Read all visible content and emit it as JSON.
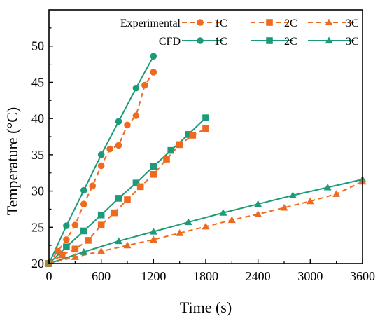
{
  "chart_data": {
    "type": "line",
    "xlabel": "Time (s)",
    "ylabel": "Temperature (°C)",
    "xlim": [
      0,
      3600
    ],
    "ylim": [
      20,
      55
    ],
    "xticks": [
      0,
      600,
      1200,
      1800,
      2400,
      3000,
      3600
    ],
    "yticks": [
      20,
      25,
      30,
      35,
      40,
      45,
      50
    ],
    "grid": false,
    "legend_position": "top",
    "legend": {
      "group_labels": [
        "Experimental",
        "CFD"
      ],
      "rate_labels": [
        "1C",
        "2C",
        "3C"
      ]
    },
    "colors": {
      "experimental": "#ee6a1f",
      "cfd": "#1b9b7a",
      "overlap": "#9a8a3a"
    },
    "series": [
      {
        "name": "1C",
        "group": "Experimental",
        "marker": "circle",
        "linestyle": "dashed",
        "color": "#ee6a1f",
        "x": [
          0,
          100,
          200,
          300,
          400,
          500,
          600,
          700,
          800,
          900,
          1000,
          1100,
          1200
        ],
        "y": [
          20.0,
          21.7,
          23.3,
          25.3,
          28.2,
          30.7,
          33.5,
          35.8,
          36.3,
          39.1,
          40.4,
          44.6,
          46.4
        ]
      },
      {
        "name": "2C",
        "group": "Experimental",
        "marker": "square",
        "linestyle": "dashed",
        "color": "#ee6a1f",
        "x": [
          0,
          150,
          300,
          450,
          600,
          750,
          900,
          1050,
          1200,
          1350,
          1500,
          1650,
          1800
        ],
        "y": [
          20.0,
          21.2,
          22.0,
          23.2,
          25.3,
          27.0,
          28.8,
          30.6,
          32.3,
          34.4,
          36.4,
          37.7,
          38.6
        ]
      },
      {
        "name": "3C",
        "group": "Experimental",
        "marker": "triangle",
        "linestyle": "dashed",
        "color": "#ee6a1f",
        "x": [
          0,
          300,
          600,
          900,
          1200,
          1500,
          1800,
          2100,
          2400,
          2700,
          3000,
          3300,
          3600
        ],
        "y": [
          20.0,
          20.9,
          21.7,
          22.5,
          23.3,
          24.2,
          25.1,
          26.0,
          26.8,
          27.7,
          28.6,
          29.6,
          31.3
        ]
      },
      {
        "name": "1C",
        "group": "CFD",
        "marker": "circle",
        "linestyle": "solid",
        "color": "#1b9b7a",
        "x": [
          0,
          200,
          400,
          600,
          800,
          1000,
          1200
        ],
        "y": [
          20.0,
          25.2,
          30.1,
          35.0,
          39.6,
          44.2,
          48.6
        ]
      },
      {
        "name": "2C",
        "group": "CFD",
        "marker": "square",
        "linestyle": "solid",
        "color": "#1b9b7a",
        "x": [
          0,
          200,
          400,
          600,
          800,
          1000,
          1200,
          1400,
          1600,
          1800
        ],
        "y": [
          20.0,
          22.3,
          24.5,
          26.7,
          29.0,
          31.1,
          33.4,
          35.6,
          37.8,
          40.1
        ]
      },
      {
        "name": "3C",
        "group": "CFD",
        "marker": "triangle",
        "linestyle": "solid",
        "color": "#1b9b7a",
        "x": [
          0,
          400,
          800,
          1200,
          1600,
          2000,
          2400,
          2800,
          3200,
          3600
        ],
        "y": [
          20.0,
          21.6,
          23.1,
          24.4,
          25.7,
          27.0,
          28.2,
          29.4,
          30.5,
          31.6
        ]
      }
    ]
  }
}
